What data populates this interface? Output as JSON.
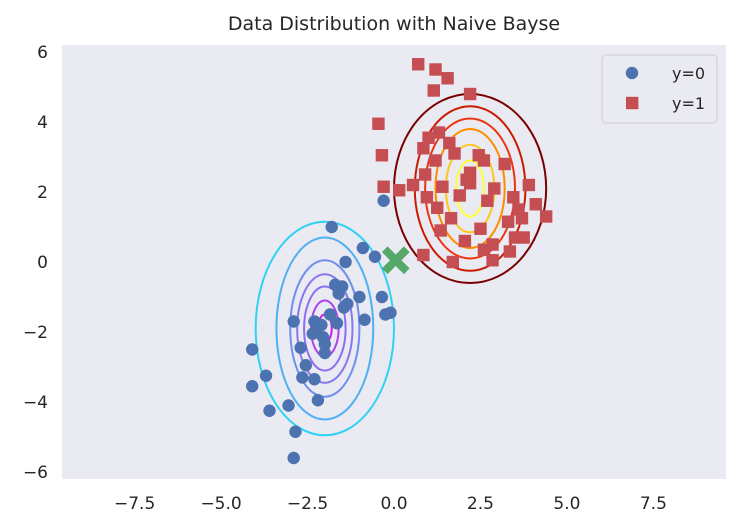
{
  "chart_data": {
    "type": "scatter",
    "title": "Data Distribution with Naive Bayse",
    "xlabel": "",
    "ylabel": "",
    "xlim": [
      -9.6,
      9.6
    ],
    "ylim": [
      -6.2,
      6.2
    ],
    "xticks": [
      -7.5,
      -5.0,
      -2.5,
      0.0,
      2.5,
      5.0,
      7.5
    ],
    "xtick_labels": [
      "−7.5",
      "−5.0",
      "−2.5",
      "0.0",
      "2.5",
      "5.0",
      "7.5"
    ],
    "yticks": [
      -6,
      -4,
      -2,
      0,
      2,
      4,
      6
    ],
    "ytick_labels": [
      "−6",
      "−4",
      "−2",
      "0",
      "2",
      "4",
      "6"
    ],
    "grid": false,
    "legend_position": "top-right",
    "colors": {
      "background": "#eaeaf2",
      "class0": "#4c72b0",
      "class1": "#c44e52",
      "test_point": "#55a868"
    },
    "series": [
      {
        "name": "y=0",
        "marker": "circle",
        "color": "#4c72b0",
        "points": [
          [
            -1.8,
            1.0
          ],
          [
            -0.3,
            1.75
          ],
          [
            -0.9,
            0.4
          ],
          [
            -0.55,
            0.15
          ],
          [
            -1.4,
            0.0
          ],
          [
            -1.5,
            -0.7
          ],
          [
            -1.7,
            -0.65
          ],
          [
            -1.6,
            -0.9
          ],
          [
            -1.0,
            -1.0
          ],
          [
            -1.35,
            -1.2
          ],
          [
            -0.35,
            -1.0
          ],
          [
            -0.1,
            -1.45
          ],
          [
            -0.25,
            -1.5
          ],
          [
            -1.45,
            -1.3
          ],
          [
            -1.85,
            -1.5
          ],
          [
            -1.65,
            -1.75
          ],
          [
            -0.85,
            -1.65
          ],
          [
            -2.1,
            -1.8
          ],
          [
            -2.3,
            -1.7
          ],
          [
            -2.9,
            -1.7
          ],
          [
            -2.25,
            -2.0
          ],
          [
            -2.35,
            -2.05
          ],
          [
            -2.05,
            -2.15
          ],
          [
            -2.0,
            -2.35
          ],
          [
            -2.7,
            -2.45
          ],
          [
            -2.0,
            -2.6
          ],
          [
            -2.55,
            -2.95
          ],
          [
            -2.65,
            -3.3
          ],
          [
            -2.3,
            -3.35
          ],
          [
            -4.1,
            -2.5
          ],
          [
            -3.7,
            -3.25
          ],
          [
            -4.1,
            -3.55
          ],
          [
            -3.6,
            -4.25
          ],
          [
            -3.05,
            -4.1
          ],
          [
            -2.2,
            -3.95
          ],
          [
            -2.85,
            -4.85
          ],
          [
            -2.9,
            -5.6
          ]
        ]
      },
      {
        "name": "y=1",
        "marker": "square",
        "color": "#c44e52",
        "points": [
          [
            0.7,
            5.65
          ],
          [
            1.2,
            5.5
          ],
          [
            1.55,
            5.25
          ],
          [
            1.15,
            4.9
          ],
          [
            2.2,
            4.8
          ],
          [
            -0.45,
            3.95
          ],
          [
            1.0,
            3.55
          ],
          [
            1.3,
            3.7
          ],
          [
            1.6,
            3.4
          ],
          [
            0.85,
            3.25
          ],
          [
            1.75,
            3.1
          ],
          [
            -0.35,
            3.05
          ],
          [
            1.2,
            2.9
          ],
          [
            2.45,
            3.05
          ],
          [
            2.6,
            2.9
          ],
          [
            2.2,
            2.55
          ],
          [
            2.1,
            2.35
          ],
          [
            3.2,
            2.8
          ],
          [
            0.9,
            2.5
          ],
          [
            0.55,
            2.2
          ],
          [
            1.4,
            2.15
          ],
          [
            -0.3,
            2.15
          ],
          [
            0.15,
            2.05
          ],
          [
            0.95,
            1.85
          ],
          [
            3.45,
            1.85
          ],
          [
            3.9,
            2.2
          ],
          [
            2.7,
            1.75
          ],
          [
            3.6,
            1.5
          ],
          [
            4.1,
            1.65
          ],
          [
            1.25,
            1.55
          ],
          [
            1.65,
            1.25
          ],
          [
            3.3,
            1.15
          ],
          [
            3.7,
            1.25
          ],
          [
            1.35,
            0.9
          ],
          [
            2.5,
            0.95
          ],
          [
            3.5,
            0.7
          ],
          [
            4.4,
            1.3
          ],
          [
            2.05,
            0.6
          ],
          [
            2.85,
            0.5
          ],
          [
            3.75,
            0.7
          ],
          [
            2.6,
            0.35
          ],
          [
            3.35,
            0.3
          ],
          [
            0.85,
            0.2
          ],
          [
            1.7,
            0.0
          ],
          [
            2.85,
            0.05
          ],
          [
            2.2,
            2.25
          ],
          [
            2.9,
            2.1
          ],
          [
            1.9,
            1.9
          ]
        ]
      }
    ],
    "test_point": {
      "x": 0.05,
      "y": 0.05,
      "marker": "x",
      "color": "#55a868"
    },
    "gaussian_contours": [
      {
        "class": "y=0",
        "mean": [
          -2.0,
          -1.9
        ],
        "std_xy_per_level": [
          [
            0.2,
            0.4
          ],
          [
            0.4,
            0.8
          ],
          [
            0.6,
            1.2
          ],
          [
            0.8,
            1.55
          ],
          [
            1.0,
            1.95
          ],
          [
            1.4,
            2.6
          ],
          [
            2.0,
            3.05
          ]
        ],
        "colors": [
          "#c71ee6",
          "#b040f0",
          "#8f6cf5",
          "#8878ee",
          "#6f8ff0",
          "#4fb0f5",
          "#2fd2f5"
        ]
      },
      {
        "class": "y=1",
        "mean": [
          2.2,
          2.1
        ],
        "std_xy_per_level": [
          [
            0.4,
            0.8
          ],
          [
            0.7,
            1.25
          ],
          [
            1.0,
            1.7
          ],
          [
            1.3,
            2.0
          ],
          [
            1.6,
            2.35
          ],
          [
            2.2,
            2.7
          ]
        ],
        "colors": [
          "#ffff33",
          "#ffc61a",
          "#ff8c00",
          "#ee3311",
          "#cc1a00",
          "#7a0000"
        ]
      }
    ]
  }
}
